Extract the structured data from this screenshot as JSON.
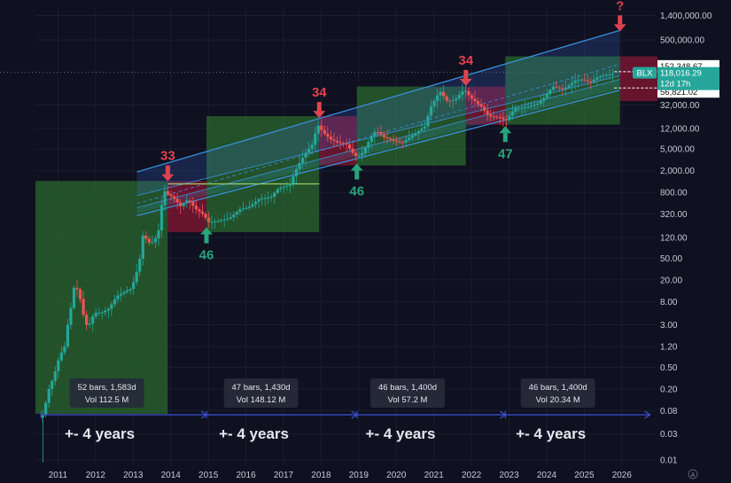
{
  "chart_data": {
    "type": "candlestick",
    "title": "",
    "y_scale": "log",
    "ylim": [
      0.008,
      2000000
    ],
    "xlim": [
      2010.4,
      2026.9
    ],
    "y_tick_labels": [
      "1,400,000.00",
      "500,000.00",
      "32,000.00",
      "12,000.00",
      "5,000.00",
      "2,000.00",
      "800.00",
      "320.00",
      "120.00",
      "50.00",
      "20.00",
      "8.00",
      "3.00",
      "1.20",
      "0.50",
      "0.20",
      "0.08",
      "0.03",
      "0.01"
    ],
    "y_tick_values": [
      1400000,
      500000,
      32000,
      12000,
      5000,
      2000,
      800,
      320,
      120,
      50,
      20,
      8,
      3,
      1.2,
      0.5,
      0.2,
      0.08,
      0.03,
      0.01
    ],
    "x_tick_labels": [
      "2011",
      "2012",
      "2013",
      "2014",
      "2015",
      "2016",
      "2017",
      "2018",
      "2019",
      "2020",
      "2021",
      "2022",
      "2023",
      "2024",
      "2025",
      "2026"
    ],
    "x_tick_values": [
      2011,
      2012,
      2013,
      2014,
      2015,
      2016,
      2017,
      2018,
      2019,
      2020,
      2021,
      2022,
      2023,
      2024,
      2025,
      2026
    ],
    "price_series": [
      [
        2010.55,
        0.06
      ],
      [
        2010.65,
        0.07
      ],
      [
        2010.8,
        0.2
      ],
      [
        2010.9,
        0.3
      ],
      [
        2011.0,
        0.5
      ],
      [
        2011.1,
        0.9
      ],
      [
        2011.2,
        1.0
      ],
      [
        2011.3,
        3
      ],
      [
        2011.4,
        7
      ],
      [
        2011.45,
        14
      ],
      [
        2011.5,
        15
      ],
      [
        2011.6,
        12
      ],
      [
        2011.7,
        5
      ],
      [
        2011.8,
        3
      ],
      [
        2011.9,
        3.2
      ],
      [
        2012.0,
        5
      ],
      [
        2012.2,
        5
      ],
      [
        2012.4,
        6
      ],
      [
        2012.6,
        10
      ],
      [
        2012.8,
        12
      ],
      [
        2013.0,
        14
      ],
      [
        2013.2,
        40
      ],
      [
        2013.3,
        130
      ],
      [
        2013.4,
        110
      ],
      [
        2013.5,
        90
      ],
      [
        2013.7,
        130
      ],
      [
        2013.85,
        900
      ],
      [
        2013.95,
        750
      ],
      [
        2014.1,
        650
      ],
      [
        2014.3,
        450
      ],
      [
        2014.5,
        600
      ],
      [
        2014.7,
        400
      ],
      [
        2014.9,
        320
      ],
      [
        2015.05,
        230
      ],
      [
        2015.3,
        240
      ],
      [
        2015.6,
        270
      ],
      [
        2015.9,
        400
      ],
      [
        2016.1,
        420
      ],
      [
        2016.4,
        620
      ],
      [
        2016.7,
        650
      ],
      [
        2016.9,
        950
      ],
      [
        2017.2,
        1100
      ],
      [
        2017.4,
        2300
      ],
      [
        2017.6,
        4000
      ],
      [
        2017.8,
        6000
      ],
      [
        2017.95,
        14000
      ],
      [
        2018.1,
        10000
      ],
      [
        2018.3,
        7500
      ],
      [
        2018.5,
        6500
      ],
      [
        2018.7,
        6300
      ],
      [
        2018.95,
        3700
      ],
      [
        2019.1,
        3800
      ],
      [
        2019.4,
        9000
      ],
      [
        2019.5,
        11000
      ],
      [
        2019.7,
        8300
      ],
      [
        2019.95,
        7200
      ],
      [
        2020.2,
        6500
      ],
      [
        2020.5,
        9200
      ],
      [
        2020.8,
        13000
      ],
      [
        2020.95,
        29000
      ],
      [
        2021.2,
        58000
      ],
      [
        2021.4,
        37000
      ],
      [
        2021.6,
        40000
      ],
      [
        2021.85,
        62000
      ],
      [
        2022.0,
        45000
      ],
      [
        2022.3,
        30000
      ],
      [
        2022.5,
        20000
      ],
      [
        2022.8,
        19000
      ],
      [
        2022.95,
        16500
      ],
      [
        2023.2,
        28000
      ],
      [
        2023.5,
        29000
      ],
      [
        2023.8,
        34000
      ],
      [
        2023.95,
        42000
      ],
      [
        2024.2,
        70000
      ],
      [
        2024.5,
        62000
      ],
      [
        2024.8,
        90000
      ],
      [
        2024.95,
        95000
      ],
      [
        2025.2,
        84000
      ],
      [
        2025.4,
        105000
      ],
      [
        2025.6,
        115000
      ],
      [
        2025.75,
        118000
      ]
    ],
    "channel_lines": {
      "upper_fill_top": [
        [
          2013.1,
          1900
        ],
        [
          2025.95,
          750000
        ]
      ],
      "upper_fill_bottom": [
        [
          2013.1,
          700
        ],
        [
          2025.95,
          110000
        ]
      ],
      "mid": [
        [
          2013.1,
          500
        ],
        [
          2025.95,
          180000
        ]
      ],
      "lower_fill_top": [
        [
          2013.1,
          420
        ],
        [
          2025.95,
          95000
        ]
      ],
      "lower_fill_bottom": [
        [
          2013.1,
          330
        ],
        [
          2025.95,
          65000
        ]
      ],
      "lower": [
        [
          2013.1,
          300
        ],
        [
          2025.95,
          60000
        ]
      ]
    },
    "cycle_boxes": [
      {
        "x0": 2010.4,
        "x1": 2013.92,
        "y0": 0.07,
        "y1": 1300,
        "color": "#2e7d32"
      },
      {
        "x0": 2013.92,
        "x1": 2014.95,
        "y0": 150,
        "y1": 1300,
        "color": "#b0173a"
      },
      {
        "x0": 2014.95,
        "x1": 2017.95,
        "y0": 150,
        "y1": 20000,
        "color": "#2e7d32"
      },
      {
        "x0": 2017.95,
        "x1": 2018.95,
        "y0": 2500,
        "y1": 20000,
        "color": "#b0173a"
      },
      {
        "x0": 2018.95,
        "x1": 2021.85,
        "y0": 2500,
        "y1": 70000,
        "color": "#2e7d32"
      },
      {
        "x0": 2021.85,
        "x1": 2022.9,
        "y0": 14000,
        "y1": 70000,
        "color": "#b0173a"
      },
      {
        "x0": 2022.9,
        "x1": 2025.95,
        "y0": 14000,
        "y1": 250000,
        "color": "#2e7d32"
      },
      {
        "x0": 2025.95,
        "x1": 2026.95,
        "y0": 38000,
        "y1": 250000,
        "color": "#b0173a"
      }
    ],
    "annotations": [
      {
        "label": "33",
        "kind": "top",
        "x": 2013.92,
        "y": 1100
      },
      {
        "label": "46",
        "kind": "bottom",
        "x": 2014.95,
        "y": 230
      },
      {
        "label": "34",
        "kind": "top",
        "x": 2017.95,
        "y": 16000
      },
      {
        "label": "46",
        "kind": "bottom",
        "x": 2018.95,
        "y": 3400
      },
      {
        "label": "34",
        "kind": "top",
        "x": 2021.85,
        "y": 62000
      },
      {
        "label": "47",
        "kind": "bottom",
        "x": 2022.9,
        "y": 16500
      },
      {
        "label": "?",
        "kind": "top",
        "x": 2025.95,
        "y": 620000
      }
    ],
    "info_boxes": [
      {
        "line1": "52 bars, 1,583d",
        "line2": "Vol 112.5 M",
        "x": 2012.3
      },
      {
        "line1": "47 bars, 1,430d",
        "line2": "Vol 148.12 M",
        "x": 2016.4
      },
      {
        "line1": "46 bars, 1,400d",
        "line2": "Vol 57.2 M",
        "x": 2020.3
      },
      {
        "line1": "46 bars, 1,400d",
        "line2": "Vol 20.34 M",
        "x": 2024.3
      }
    ],
    "cycle_arrows": [
      {
        "x0": 2010.55,
        "x1": 2014.95
      },
      {
        "x0": 2014.95,
        "x1": 2018.95
      },
      {
        "x0": 2018.95,
        "x1": 2022.9
      },
      {
        "x0": 2022.9,
        "x1": 2026.75
      }
    ],
    "years_labels": [
      {
        "text": "+- 4 years",
        "x": 2012.3
      },
      {
        "text": "+- 4 years",
        "x": 2016.4
      },
      {
        "text": "+- 4 years",
        "x": 2020.3
      },
      {
        "text": "+- 4 years",
        "x": 2024.3
      }
    ],
    "price_boxes": {
      "upper": {
        "text": "152,348.67",
        "value": 152348.67
      },
      "current": {
        "ticker": "BLX",
        "price": "118,016.29",
        "timer": "12d 17h",
        "value": 118016.29
      },
      "lower": {
        "text": "56,821.02",
        "value": 56821.02
      }
    },
    "colors": {
      "background": "#0f1020",
      "green_box": "#2e7d32",
      "red_box": "#b0173a",
      "channel": "#3a8fd8",
      "up_candle": "#26a69a",
      "down_candle": "#ef5350",
      "top_marker": "#e0434f",
      "bottom_marker": "#26a67a",
      "arrow_line": "#3f51d6",
      "price_tag": "#26a69a"
    }
  }
}
